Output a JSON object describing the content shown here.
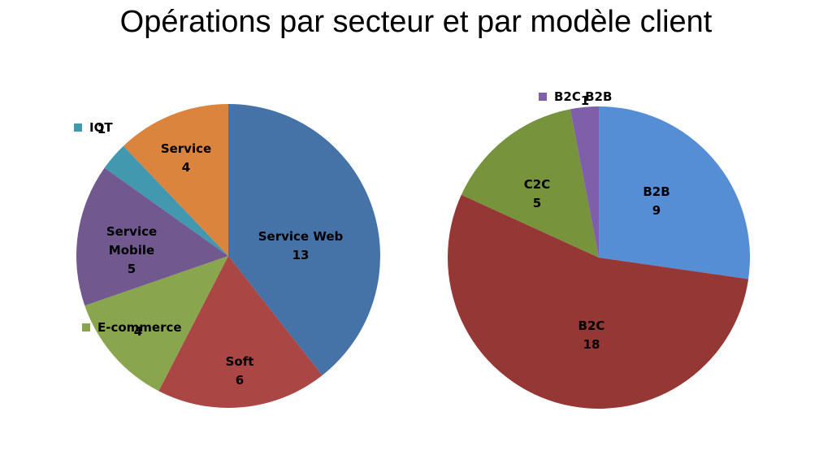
{
  "title": "Opérations par secteur et par modèle client",
  "chart_data": [
    {
      "type": "pie",
      "slices": [
        {
          "label": "Service Web",
          "value": 13,
          "color": "#4572a7"
        },
        {
          "label": "Soft",
          "value": 6,
          "color": "#aa4643"
        },
        {
          "label": "E-commerce",
          "value": 4,
          "color": "#89a54e"
        },
        {
          "label": "Service Mobile",
          "value": 5,
          "color": "#71588f"
        },
        {
          "label": "IOT",
          "value": 1,
          "color": "#4198af"
        },
        {
          "label": "Service",
          "value": 4,
          "color": "#db843d"
        }
      ],
      "legend_labels": [
        "IOT",
        "E-commerce"
      ]
    },
    {
      "type": "pie",
      "slices": [
        {
          "label": "B2B",
          "value": 9,
          "color": "#558ed5"
        },
        {
          "label": "B2C",
          "value": 18,
          "color": "#953735"
        },
        {
          "label": "C2C",
          "value": 5,
          "color": "#77933c"
        },
        {
          "label": "B2C B2B",
          "value": 1,
          "color": "#7f5fa9"
        }
      ],
      "legend_labels": [
        "B2C B2B"
      ]
    }
  ]
}
